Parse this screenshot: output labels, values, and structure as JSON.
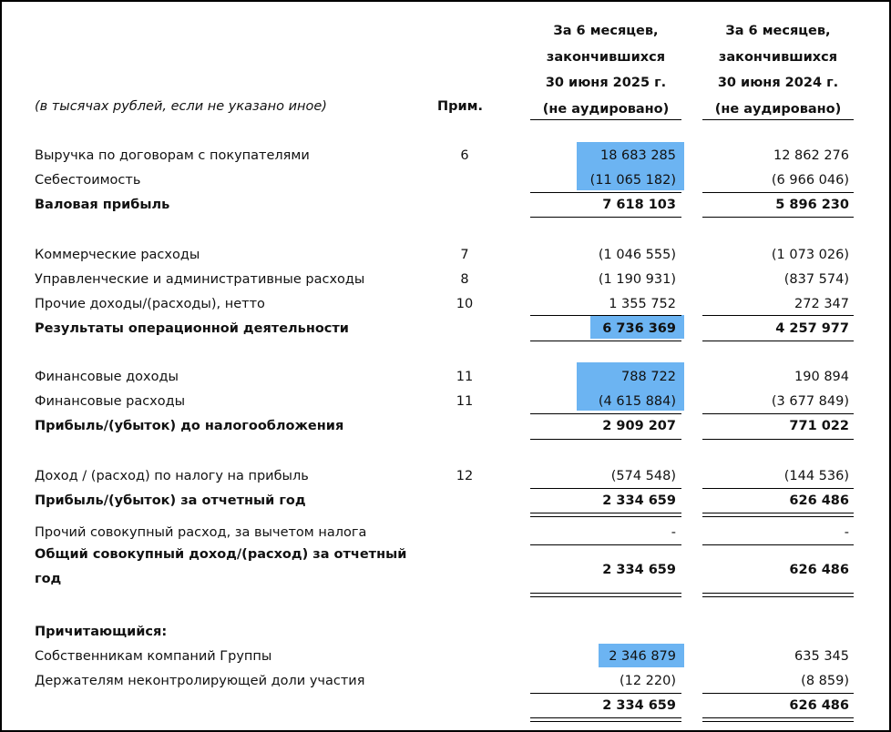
{
  "header": {
    "units_note": "(в тысячах рублей, если не указано иное)",
    "note_col": "Прим.",
    "col1": [
      "За 6 месяцев,",
      "закончившихся",
      "30 июня 2025 г.",
      "(не аудировано)"
    ],
    "col2": [
      "За 6 месяцев,",
      "закончившихся",
      "30 июня 2024 г.",
      "(не аудировано)"
    ]
  },
  "rows": {
    "revenue": {
      "label": "Выручка по договорам с покупателями",
      "note": "6",
      "v1": "18 683 285",
      "v2": "12 862 276"
    },
    "cost": {
      "label": "Себестоимость",
      "v1": "(11 065 182)",
      "v2": "(6 966 046)"
    },
    "gross": {
      "label": "Валовая прибыль",
      "v1": "7 618 103",
      "v2": "5 896 230"
    },
    "selling": {
      "label": "Коммерческие расходы",
      "note": "7",
      "v1": "(1 046 555)",
      "v2": "(1 073 026)"
    },
    "admin": {
      "label": "Управленческие и административные расходы",
      "note": "8",
      "v1": "(1 190 931)",
      "v2": "(837 574)"
    },
    "other": {
      "label": "Прочие доходы/(расходы), нетто",
      "note": "10",
      "v1": "1 355 752",
      "v2": "272 347"
    },
    "operating": {
      "label": "Результаты операционной деятельности",
      "v1": "6 736 369",
      "v2": "4 257 977"
    },
    "fin_income": {
      "label": "Финансовые доходы",
      "note": "11",
      "v1": "788 722",
      "v2": "190 894"
    },
    "fin_costs": {
      "label": "Финансовые расходы",
      "note": "11",
      "v1": "(4 615 884)",
      "v2": "(3 677 849)"
    },
    "pbt": {
      "label": "Прибыль/(убыток) до налогообложения",
      "v1": "2 909 207",
      "v2": "771 022"
    },
    "tax": {
      "label": "Доход / (расход) по налогу на прибыль",
      "note": "12",
      "v1": "(574 548)",
      "v2": "(144 536)"
    },
    "profit": {
      "label": "Прибыль/(убыток) за отчетный год",
      "v1": "2 334 659",
      "v2": "626 486"
    },
    "oci": {
      "label": "Прочий совокупный расход, за вычетом налога",
      "v1": "-",
      "v2": "-"
    },
    "tci": {
      "label_l1": "Общий совокупный доход/(расход) за отчетный",
      "label_l2": "год",
      "v1": "2 334 659",
      "v2": "626 486"
    },
    "attributable": {
      "label": "Причитающийся:"
    },
    "owners": {
      "label": "Собственникам компаний Группы",
      "v1": "2 346 879",
      "v2": "635 345"
    },
    "nci": {
      "label": "Держателям неконтролирующей доли участия",
      "v1": "(12 220)",
      "v2": "(8 859)"
    },
    "total": {
      "v1": "2 334 659",
      "v2": "626 486"
    }
  },
  "colors": {
    "highlight": "#6cb4f2",
    "text": "#111111",
    "rule": "#000000"
  }
}
